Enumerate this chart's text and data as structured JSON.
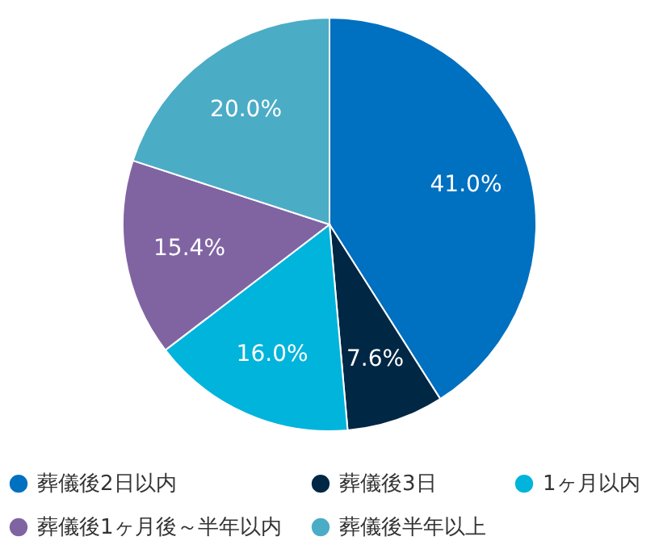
{
  "chart_data": {
    "type": "pie",
    "categories": [
      "葬儀後2日以内",
      "葬儀後3日",
      "1ヶ月以内",
      "葬儀後1ヶ月後～半年以内",
      "葬儀後半年以上"
    ],
    "values": [
      41.0,
      7.6,
      16.0,
      15.4,
      20.0
    ],
    "colors": [
      "#0070c0",
      "#002744",
      "#00b4dc",
      "#8064a2",
      "#4bacc6"
    ],
    "value_labels": [
      "41.0%",
      "7.6%",
      "16.0%",
      "15.4%",
      "20.0%"
    ],
    "legend": "bottom"
  }
}
